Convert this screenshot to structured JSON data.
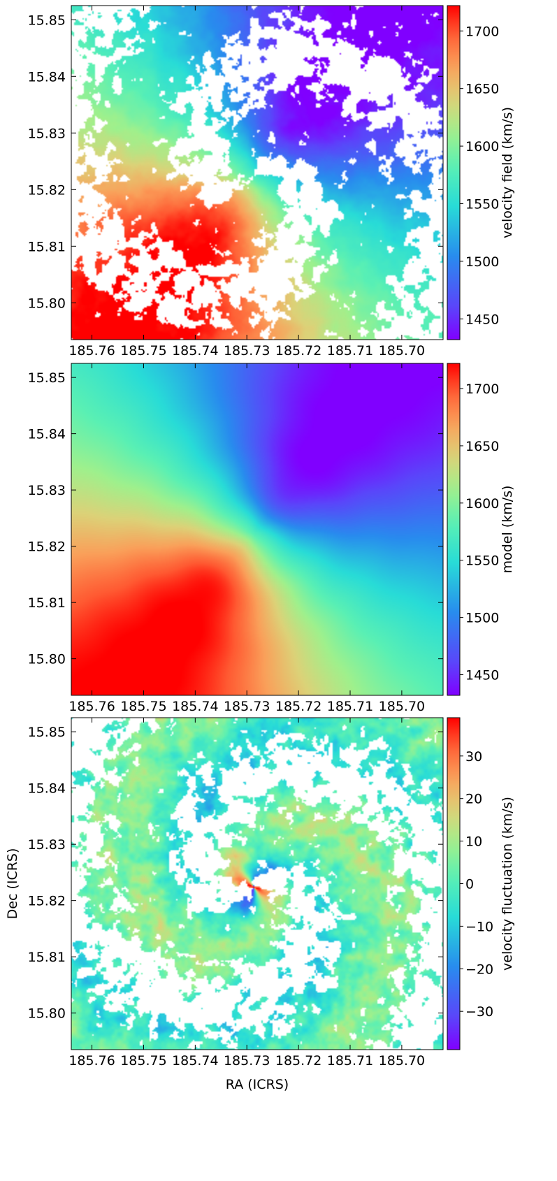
{
  "chart_data": [
    {
      "type": "heatmap",
      "title": "",
      "xlabel": "",
      "ylabel": "",
      "xlim": [
        185.764,
        185.692
      ],
      "ylim": [
        15.7935,
        15.8525
      ],
      "x_ticks": [
        185.76,
        185.75,
        185.74,
        185.73,
        185.72,
        185.71,
        185.7
      ],
      "x_tick_labels": [
        "185.76",
        "185.75",
        "185.74",
        "185.73",
        "185.72",
        "185.71",
        "185.70"
      ],
      "y_ticks": [
        15.8,
        15.81,
        15.82,
        15.83,
        15.84,
        15.85
      ],
      "y_tick_labels": [
        "15.80",
        "15.81",
        "15.82",
        "15.83",
        "15.84",
        "15.85"
      ],
      "colorbar": {
        "label": "velocity field (km/s)",
        "range": [
          1432,
          1722
        ],
        "ticks": [
          1450,
          1500,
          1550,
          1600,
          1650,
          1700
        ],
        "tick_labels": [
          "1450",
          "1500",
          "1550",
          "1600",
          "1650",
          "1700"
        ],
        "colormap": "rainbow"
      },
      "field": "observed",
      "center": [
        185.7288,
        15.8225
      ],
      "systemic_velocity": 1577,
      "velocity_amplitude": 150,
      "grid": false,
      "masked": true
    },
    {
      "type": "heatmap",
      "title": "",
      "xlabel": "",
      "ylabel": "",
      "xlim": [
        185.764,
        185.692
      ],
      "ylim": [
        15.7935,
        15.8525
      ],
      "x_ticks": [
        185.76,
        185.75,
        185.74,
        185.73,
        185.72,
        185.71,
        185.7
      ],
      "x_tick_labels": [
        "185.76",
        "185.75",
        "185.74",
        "185.73",
        "185.72",
        "185.71",
        "185.70"
      ],
      "y_ticks": [
        15.8,
        15.81,
        15.82,
        15.83,
        15.84,
        15.85
      ],
      "y_tick_labels": [
        "15.80",
        "15.81",
        "15.82",
        "15.83",
        "15.84",
        "15.85"
      ],
      "colorbar": {
        "label": "model (km/s)",
        "range": [
          1432,
          1722
        ],
        "ticks": [
          1450,
          1500,
          1550,
          1600,
          1650,
          1700
        ],
        "tick_labels": [
          "1450",
          "1500",
          "1550",
          "1600",
          "1650",
          "1700"
        ],
        "colormap": "rainbow"
      },
      "field": "model",
      "center": [
        185.7288,
        15.8225
      ],
      "systemic_velocity": 1577,
      "velocity_amplitude": 150,
      "grid": false,
      "masked": false
    },
    {
      "type": "heatmap",
      "title": "",
      "xlabel": "RA (ICRS)",
      "ylabel": "Dec (ICRS)",
      "xlim": [
        185.764,
        185.692
      ],
      "ylim": [
        15.7935,
        15.8525
      ],
      "x_ticks": [
        185.76,
        185.75,
        185.74,
        185.73,
        185.72,
        185.71,
        185.7
      ],
      "x_tick_labels": [
        "185.76",
        "185.75",
        "185.74",
        "185.73",
        "185.72",
        "185.71",
        "185.70"
      ],
      "y_ticks": [
        15.8,
        15.81,
        15.82,
        15.83,
        15.84,
        15.85
      ],
      "y_tick_labels": [
        "15.80",
        "15.81",
        "15.82",
        "15.83",
        "15.84",
        "15.85"
      ],
      "colorbar": {
        "label": "velocity fluctuation (km/s)",
        "range": [
          -39,
          39
        ],
        "ticks": [
          -30,
          -20,
          -10,
          0,
          10,
          20,
          30
        ],
        "tick_labels": [
          "−30",
          "−20",
          "−10",
          "0",
          "10",
          "20",
          "30"
        ],
        "colormap": "rainbow"
      },
      "field": "residual",
      "center": [
        185.7288,
        15.8225
      ],
      "grid": false,
      "masked": true
    }
  ]
}
